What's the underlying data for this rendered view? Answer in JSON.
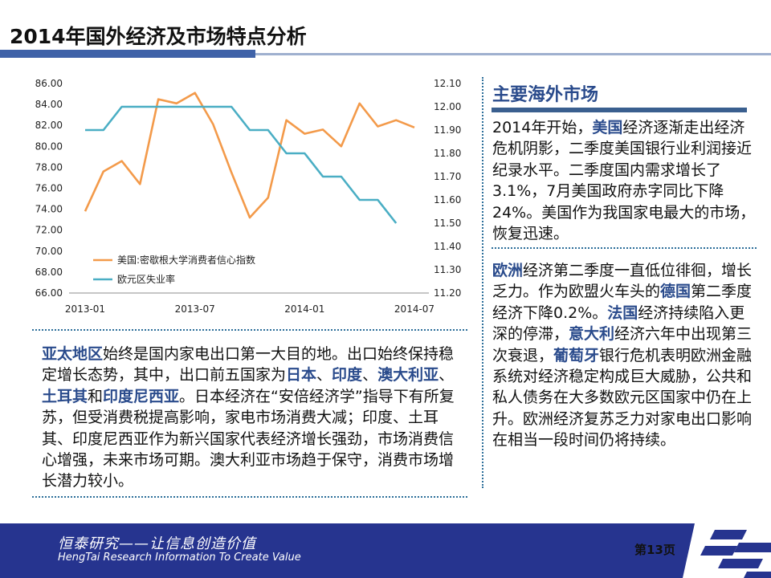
{
  "page_title": "2014年国外经济及市场特点分析",
  "chart_data": {
    "type": "line",
    "x": [
      "2013-01",
      "2013-02",
      "2013-03",
      "2013-04",
      "2013-05",
      "2013-06",
      "2013-07",
      "2013-08",
      "2013-09",
      "2013-10",
      "2013-11",
      "2013-12",
      "2014-01",
      "2014-02",
      "2014-03",
      "2014-04",
      "2014-05",
      "2014-06",
      "2014-07"
    ],
    "x_tick_labels": [
      "2013-01",
      "2013-07",
      "2014-01",
      "2014-07"
    ],
    "left_axis": {
      "min": 66,
      "max": 86,
      "ticks": [
        "66.00",
        "68.00",
        "70.00",
        "72.00",
        "74.00",
        "76.00",
        "78.00",
        "80.00",
        "82.00",
        "84.00",
        "86.00"
      ]
    },
    "right_axis": {
      "min": 11.2,
      "max": 12.1,
      "ticks": [
        "11.20",
        "11.30",
        "11.40",
        "11.50",
        "11.60",
        "11.70",
        "11.80",
        "11.90",
        "12.00",
        "12.10"
      ]
    },
    "series": [
      {
        "name": "美国:密歇根大学消费者信心指数",
        "axis": "left",
        "color": "#f39a4a",
        "values": [
          73.8,
          77.6,
          78.6,
          76.4,
          84.5,
          84.1,
          85.1,
          82.1,
          77.5,
          73.2,
          75.1,
          82.5,
          81.2,
          81.6,
          80.0,
          84.1,
          81.9,
          82.5,
          81.8
        ]
      },
      {
        "name": "欧元区失业率",
        "axis": "right",
        "color": "#4aaec4",
        "values": [
          11.9,
          11.9,
          12.0,
          12.0,
          12.0,
          12.0,
          12.0,
          12.0,
          12.0,
          11.9,
          11.9,
          11.8,
          11.8,
          11.7,
          11.7,
          11.6,
          11.6,
          11.5,
          null
        ]
      }
    ],
    "legend_position": "bottom-left"
  },
  "asia": {
    "p1": "亚太地区",
    "p2": "始终是国内家电出口第一大目的地。出口始终保持稳定增长态势，其中，出口前五国家为",
    "p3": "日本",
    "p4": "、",
    "p5": "印度",
    "p6": "、",
    "p7": "澳大利亚",
    "p8": "、",
    "p9": "土耳其",
    "p10": "和",
    "p11": "印度尼西亚",
    "p12": "。日本经济在“安倍经济学”指导下有所复苏，但受消费税提高影响，家电市场消费大减；印度、土耳其、印度尼西亚作为新兴国家代表经济增长强劲，市场消费信心增强，未来市场可期。澳大利亚市场趋于保守，消费市场增长潜力较小。"
  },
  "market": {
    "title": "主要海外市场",
    "us": {
      "p1": "2014年开始，",
      "p2": "美国",
      "p3": "经济逐渐走出经济危机阴影，二季度美国银行业利润接近纪录水平。二季度国内需求增长了3.1%，7月美国政府赤字同比下降24%。美国作为我国家电最大的市场，恢复迅速。"
    },
    "eu": {
      "p1": "欧洲",
      "p2": "经济第二季度一直低位徘徊，增长乏力。作为欧盟火车头的",
      "p3": "德国",
      "p4": "第二季度经济下降0.2%。",
      "p5": "法国",
      "p6": "经济持续陷入更深的停滞，",
      "p7": "意大利",
      "p8": "经济六年中出现第三次衰退，",
      "p9": "葡萄牙",
      "p10": "银行危机表明欧洲金融系统对经济稳定构成巨大威胁，公共和私人债务在大多数欧元区国家中仍在上升。欧洲经济复苏乏力对家电出口影响在相当一段时间仍将持续。"
    }
  },
  "footer": {
    "slogan": "恒泰研究——让信息创造价值",
    "english": "HengTai Research Information To Create Value",
    "page": "第13页",
    "bg_color": "#26348f"
  }
}
